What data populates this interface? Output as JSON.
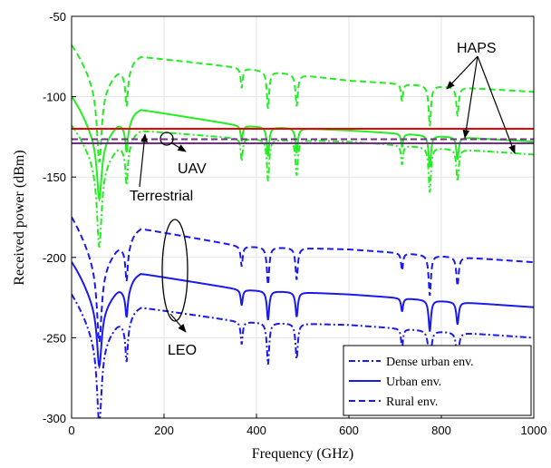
{
  "chart_data": {
    "type": "line",
    "xlabel": "Frequency (GHz)",
    "ylabel": "Received power (dBm)",
    "xlim": [
      0,
      1000
    ],
    "ylim": [
      -300,
      -50
    ],
    "xticks": [
      0,
      200,
      400,
      600,
      800,
      1000
    ],
    "yticks": [
      -50,
      -100,
      -150,
      -200,
      -250,
      -300
    ],
    "grid": true,
    "legend": {
      "placement": "bottom-right",
      "entries": [
        {
          "label": "Dense urban env.",
          "style": "dashdot"
        },
        {
          "label": "Urban env.",
          "style": "solid"
        },
        {
          "label": "Rural env.",
          "style": "dashed"
        }
      ]
    },
    "absorption_lines_ghz": [
      60,
      119,
      368,
      425,
      487,
      715,
      775,
      835
    ],
    "groups": [
      {
        "annotation": "HAPS",
        "color": "#22ee22",
        "series": [
          {
            "style": "dashed",
            "anchors": [
              [
                0,
                -67
              ],
              [
                58,
                -88
              ],
              [
                150,
                -75
              ],
              [
                365,
                -82
              ],
              [
                600,
                -90
              ],
              [
                1000,
                -97
              ]
            ]
          },
          {
            "style": "solid",
            "anchors": [
              [
                0,
                -99
              ],
              [
                58,
                -121
              ],
              [
                150,
                -108
              ],
              [
                365,
                -118
              ],
              [
                600,
                -121
              ],
              [
                1000,
                -128
              ]
            ]
          },
          {
            "style": "dashdot",
            "anchors": [
              [
                0,
                -117
              ],
              [
                58,
                -136
              ],
              [
                150,
                -121
              ],
              [
                365,
                -126
              ],
              [
                600,
                -128
              ],
              [
                1000,
                -136
              ]
            ]
          }
        ]
      },
      {
        "annotation": "LEO",
        "color": "#1a1aee",
        "series": [
          {
            "style": "dashed",
            "anchors": [
              [
                0,
                -174
              ],
              [
                58,
                -200
              ],
              [
                150,
                -182
              ],
              [
                365,
                -193
              ],
              [
                600,
                -195
              ],
              [
                1000,
                -203
              ]
            ]
          },
          {
            "style": "solid",
            "anchors": [
              [
                0,
                -202
              ],
              [
                58,
                -225
              ],
              [
                150,
                -210
              ],
              [
                365,
                -220
              ],
              [
                600,
                -223
              ],
              [
                1000,
                -231
              ]
            ]
          },
          {
            "style": "dashdot",
            "anchors": [
              [
                0,
                -222
              ],
              [
                58,
                -246
              ],
              [
                150,
                -231
              ],
              [
                365,
                -240
              ],
              [
                600,
                -242
              ],
              [
                1000,
                -250
              ]
            ]
          }
        ]
      }
    ],
    "reference_lines": [
      {
        "annotation": "Terrestrial",
        "color": "#ee0000",
        "style": "solid",
        "y": -120
      },
      {
        "annotation": "UAV",
        "color": "#7a2a8a",
        "style": "dashed",
        "y": -126.5
      },
      {
        "annotation": "UAV",
        "color": "#7a2a8a",
        "style": "solid",
        "y": -129
      }
    ]
  }
}
